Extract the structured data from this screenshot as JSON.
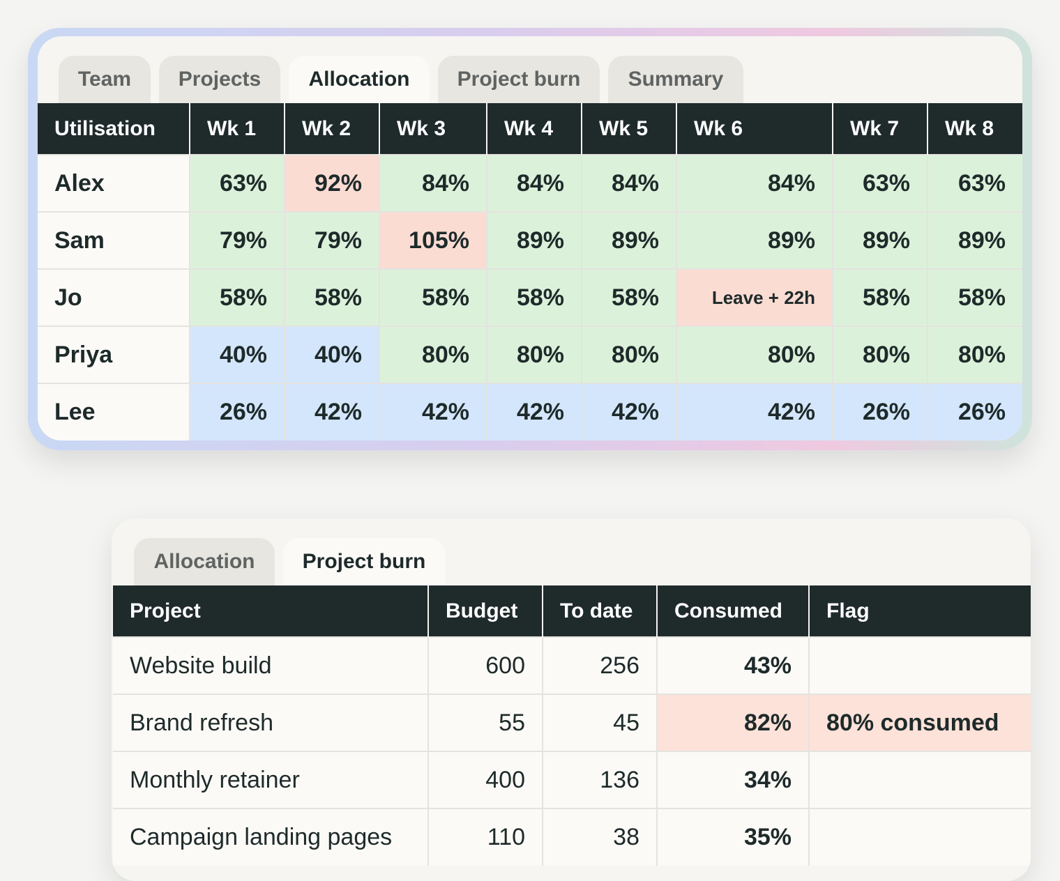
{
  "allocation_card": {
    "tabs": [
      {
        "label": "Team"
      },
      {
        "label": "Projects"
      },
      {
        "label": "Allocation"
      },
      {
        "label": "Project burn"
      },
      {
        "label": "Summary"
      }
    ],
    "active_tab": "Allocation",
    "headers": [
      "Utilisation",
      "Wk 1",
      "Wk 2",
      "Wk 3",
      "Wk 4",
      "Wk 5",
      "Wk 6",
      "Wk 7",
      "Wk 8"
    ],
    "rows": [
      {
        "name": "Alex",
        "cells": [
          "63%",
          "92%",
          "84%",
          "84%",
          "84%",
          "84%",
          "63%",
          "63%"
        ],
        "status": [
          "g",
          "r",
          "g",
          "g",
          "g",
          "g",
          "g",
          "g"
        ]
      },
      {
        "name": "Sam",
        "cells": [
          "79%",
          "79%",
          "105%",
          "89%",
          "89%",
          "89%",
          "89%",
          "89%"
        ],
        "status": [
          "g",
          "g",
          "r",
          "g",
          "g",
          "g",
          "g",
          "g"
        ]
      },
      {
        "name": "Jo",
        "cells": [
          "58%",
          "58%",
          "58%",
          "58%",
          "58%",
          "Leave + 22h",
          "58%",
          "58%"
        ],
        "status": [
          "g",
          "g",
          "g",
          "g",
          "g",
          "r",
          "g",
          "g"
        ]
      },
      {
        "name": "Priya",
        "cells": [
          "40%",
          "40%",
          "80%",
          "80%",
          "80%",
          "80%",
          "80%",
          "80%"
        ],
        "status": [
          "b",
          "b",
          "g",
          "g",
          "g",
          "g",
          "g",
          "g"
        ]
      },
      {
        "name": "Lee",
        "cells": [
          "26%",
          "42%",
          "42%",
          "42%",
          "42%",
          "42%",
          "26%",
          "26%"
        ],
        "status": [
          "b",
          "b",
          "b",
          "b",
          "b",
          "b",
          "b",
          "b"
        ]
      }
    ]
  },
  "burn_card": {
    "tabs": [
      {
        "label": "Allocation"
      },
      {
        "label": "Project burn"
      }
    ],
    "active_tab": "Project burn",
    "headers": [
      "Project",
      "Budget",
      "To date",
      "Consumed",
      "Flag"
    ],
    "rows": [
      {
        "project": "Website build",
        "budget": "600",
        "to_date": "256",
        "consumed": "43%",
        "flag": "",
        "alert": false
      },
      {
        "project": "Brand refresh",
        "budget": "55",
        "to_date": "45",
        "consumed": "82%",
        "flag": "80% consumed",
        "alert": true
      },
      {
        "project": "Monthly retainer",
        "budget": "400",
        "to_date": "136",
        "consumed": "34%",
        "flag": "",
        "alert": false
      },
      {
        "project": "Campaign landing pages",
        "budget": "110",
        "to_date": "38",
        "consumed": "35%",
        "flag": "",
        "alert": false
      }
    ]
  },
  "colors": {
    "over": "#fbdcd3",
    "ok": "#dcf1da",
    "under": "#d4e6fb",
    "header": "#1f2a2b"
  }
}
